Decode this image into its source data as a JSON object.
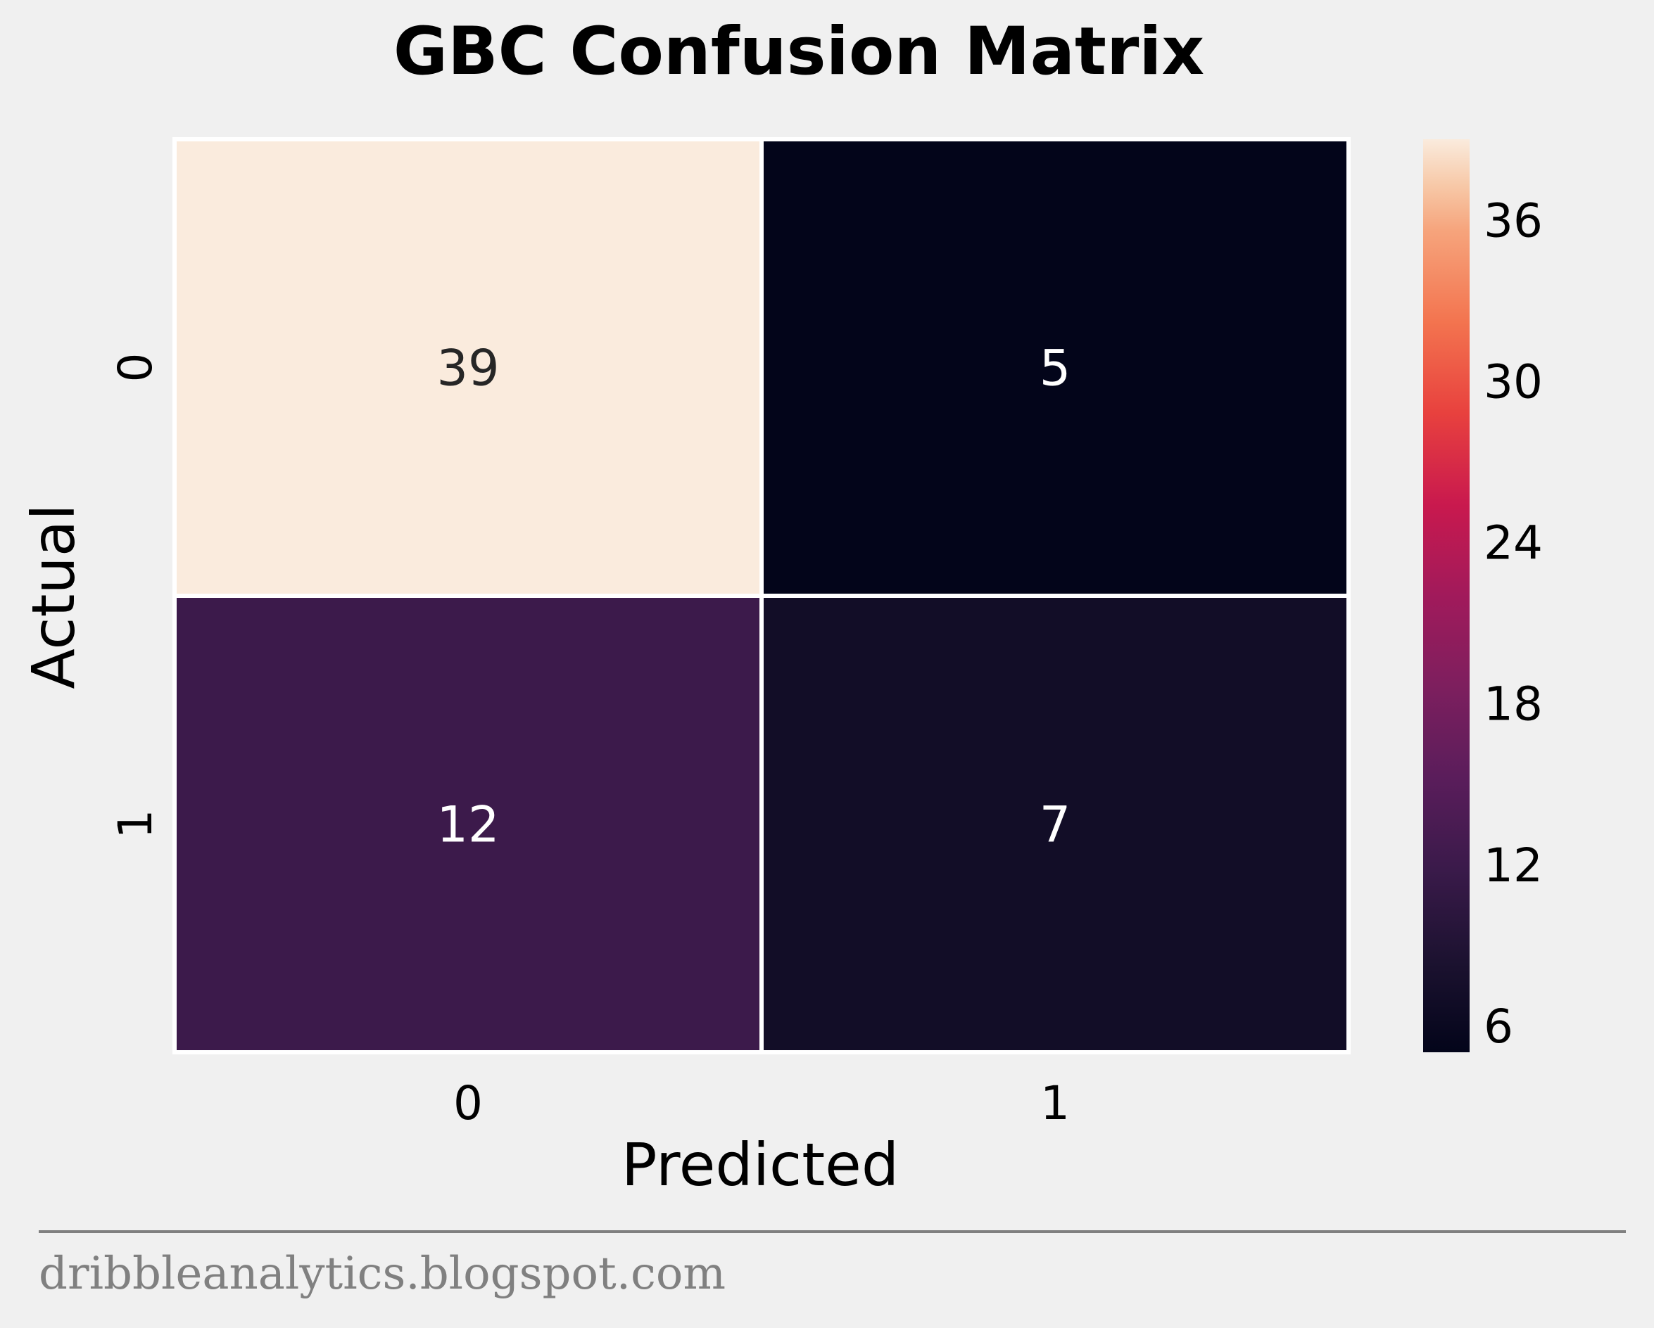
{
  "chart_data": {
    "type": "heatmap",
    "title": "GBC Confusion Matrix",
    "xlabel": "Predicted",
    "ylabel": "Actual",
    "x_categories": [
      "0",
      "1"
    ],
    "y_categories": [
      "0",
      "1"
    ],
    "values": [
      [
        39,
        5
      ],
      [
        12,
        7
      ]
    ],
    "colorbar": {
      "range": [
        5,
        39
      ],
      "ticks": [
        6,
        12,
        18,
        24,
        30,
        36
      ],
      "colormap": "rocket"
    },
    "cell_text_dark": "#262626",
    "cell_text_light": "#ffffff",
    "grid_line_color": "#ffffff"
  },
  "footer": {
    "source_text": "dribbleanalytics.blogspot.com",
    "text_color": "#808080",
    "rule_color": "#808080"
  },
  "colors": {
    "background": "#f0f0f0"
  }
}
